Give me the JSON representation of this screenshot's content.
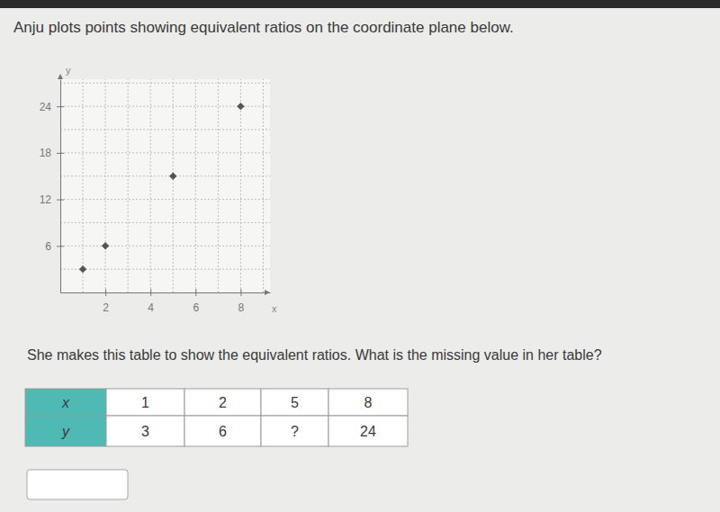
{
  "instruction": "Anju plots points showing equivalent ratios on the coordinate plane below.",
  "chart_data": {
    "type": "scatter",
    "x_label": "x",
    "y_label": "y",
    "x": [
      1,
      2,
      5,
      8
    ],
    "values": [
      3,
      6,
      15,
      24
    ],
    "color": "#555555",
    "marker": "diamond",
    "xlim": [
      0,
      9.3
    ],
    "xticks": [
      2,
      4,
      6,
      8
    ],
    "ylim": [
      0,
      27.5
    ],
    "yticks": [
      6,
      12,
      18,
      24
    ],
    "grid": true
  },
  "question": "She makes this table to show the equivalent ratios. What is the missing value in her table?",
  "table": {
    "rows": [
      [
        "x",
        1,
        2,
        5,
        8
      ],
      [
        "y",
        3,
        6,
        "?",
        24
      ]
    ]
  }
}
